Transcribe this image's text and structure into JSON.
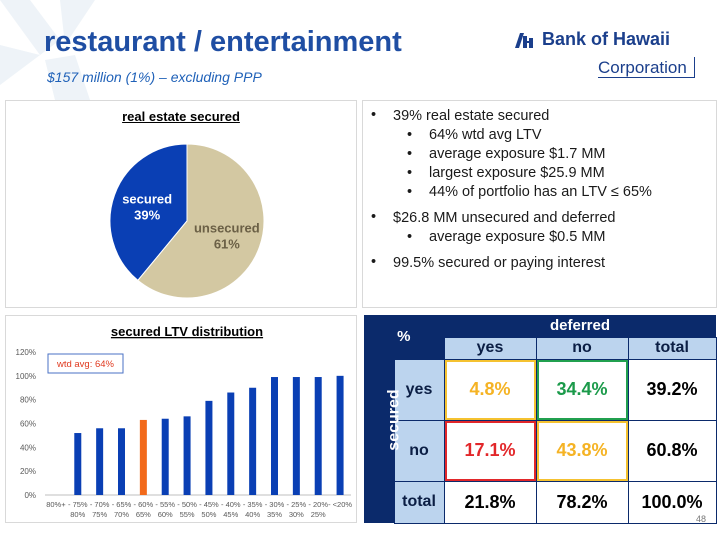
{
  "page": {
    "title": "restaurant / entertainment",
    "subtitle": "$157 million (1%) – excluding PPP",
    "page_number": "48"
  },
  "logo": {
    "name": "Bank of Hawaii",
    "corporation": "Corporation",
    "mark_icon": "bank-of-hawaii-mark-icon",
    "color": "#1b3f8c"
  },
  "colors": {
    "title": "#1f4ea3",
    "secured": "#0a3fb4",
    "unsecured": "#d3c8a2",
    "bar": "#0a3fb4",
    "bar_highlight": "#f26a1b",
    "table_dark": "#0b2a6b",
    "table_light": "#bcd4ee",
    "yellow": "#f5b324",
    "green": "#1b9a4a",
    "red": "#e2272a"
  },
  "bullets": [
    {
      "text": "39% real estate secured",
      "sub": [
        "64% wtd avg LTV",
        "average exposure $1.7 MM",
        "largest exposure $25.9 MM",
        "44% of portfolio has an LTV ≤ 65%"
      ]
    },
    {
      "text": "$26.8 MM unsecured and deferred",
      "sub": [
        "average exposure $0.5 MM"
      ]
    },
    {
      "text": "99.5% secured or paying interest",
      "sub": []
    }
  ],
  "chart_data": [
    {
      "type": "pie",
      "title": "real estate secured",
      "slices": [
        {
          "label": "secured",
          "value": 39,
          "value_label": "39%",
          "color": "#0a3fb4"
        },
        {
          "label": "unsecured",
          "value": 61,
          "value_label": "61%",
          "color": "#d3c8a2"
        }
      ]
    },
    {
      "type": "bar",
      "title": "secured LTV distribution",
      "annotation": "wtd avg:  64%",
      "categories": [
        "80%+",
        "75% - 80%",
        "70% - 75%",
        "65% - 70%",
        "60% - 65%",
        "55% - 60%",
        "50% - 55%",
        "45% - 50%",
        "40% - 45%",
        "35% - 40%",
        "30% - 35%",
        "25% - 30%",
        "20% - 25%",
        "<20%"
      ],
      "category_lines": [
        [
          "80%+",
          ""
        ],
        [
          "- 75%",
          "80%"
        ],
        [
          "- 70%",
          "75%"
        ],
        [
          "- 65%",
          "70%"
        ],
        [
          "- 60%",
          "65%"
        ],
        [
          "- 55%",
          "60%"
        ],
        [
          "- 50%",
          "55%"
        ],
        [
          "- 45%",
          "50%"
        ],
        [
          "- 40%",
          "45%"
        ],
        [
          "- 35%",
          "40%"
        ],
        [
          "- 30%",
          "35%"
        ],
        [
          "- 25%",
          "30%"
        ],
        [
          "- 20%",
          "25%"
        ],
        [
          "- <20%",
          ""
        ]
      ],
      "values": [
        0,
        52,
        56,
        56,
        63,
        64,
        66,
        79,
        86,
        90,
        99,
        99,
        99,
        100
      ],
      "highlight_index": 4,
      "ylim": [
        0,
        120
      ],
      "yticks": [
        0,
        20,
        40,
        60,
        80,
        100,
        120
      ],
      "ytick_labels": [
        "0%",
        "20%",
        "40%",
        "60%",
        "80%",
        "100%",
        "120%"
      ],
      "grid": false
    }
  ],
  "matrix": {
    "corner": "%",
    "col_group": "deferred",
    "col_headers": [
      "yes",
      "no",
      "total"
    ],
    "row_group": "secured",
    "rows": [
      {
        "label": "yes",
        "cells": [
          "4.8%",
          "34.4%",
          "39.2%"
        ]
      },
      {
        "label": "no",
        "cells": [
          "17.1%",
          "43.8%",
          "60.8%"
        ]
      },
      {
        "label": "total",
        "cells": [
          "21.8%",
          "78.2%",
          "100.0%"
        ]
      }
    ]
  }
}
